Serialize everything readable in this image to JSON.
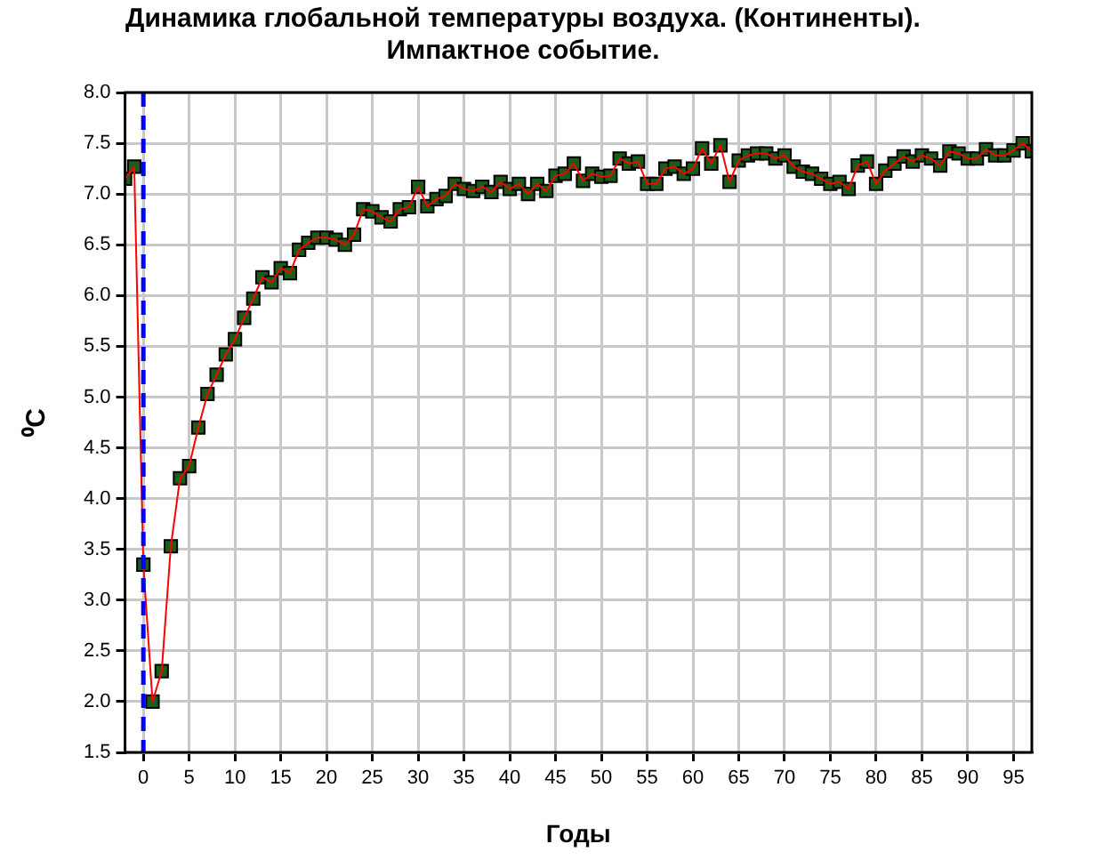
{
  "chart_data": {
    "type": "line",
    "title": "Динамика глобальной температуры воздуха. (Континенты).\nИмпактное событие.",
    "xlabel": "Годы",
    "ylabel": "⁰C",
    "x": [
      -2,
      -1,
      0,
      1,
      2,
      3,
      4,
      5,
      6,
      7,
      8,
      9,
      10,
      11,
      12,
      13,
      14,
      15,
      16,
      17,
      18,
      19,
      20,
      21,
      22,
      23,
      24,
      25,
      26,
      27,
      28,
      29,
      30,
      31,
      32,
      33,
      34,
      35,
      36,
      37,
      38,
      39,
      40,
      41,
      42,
      43,
      44,
      45,
      46,
      47,
      48,
      49,
      50,
      51,
      52,
      53,
      54,
      55,
      56,
      57,
      58,
      59,
      60,
      61,
      62,
      63,
      64,
      65,
      66,
      67,
      68,
      69,
      70,
      71,
      72,
      73,
      74,
      75,
      76,
      77,
      78,
      79,
      80,
      81,
      82,
      83,
      84,
      85,
      86,
      87,
      88,
      89,
      90,
      91,
      92,
      93,
      94,
      95,
      96,
      97
    ],
    "series": [
      {
        "color": "#ff0000",
        "marker": "none",
        "values": [
          7.15,
          7.27,
          3.35,
          2.0,
          2.3,
          3.53,
          4.2,
          4.32,
          4.7,
          5.03,
          5.22,
          5.42,
          5.57,
          5.78,
          5.97,
          6.18,
          6.13,
          6.27,
          6.22,
          6.45,
          6.52,
          6.57,
          6.57,
          6.55,
          6.5,
          6.6,
          6.85,
          6.83,
          6.77,
          6.73,
          6.85,
          6.87,
          7.07,
          6.88,
          6.95,
          6.98,
          7.1,
          7.05,
          7.03,
          7.07,
          7.02,
          7.12,
          7.05,
          7.1,
          7.0,
          7.1,
          7.03,
          7.18,
          7.2,
          7.3,
          7.13,
          7.2,
          7.17,
          7.18,
          7.35,
          7.3,
          7.32,
          7.1,
          7.1,
          7.25,
          7.27,
          7.2,
          7.25,
          7.45,
          7.3,
          7.48,
          7.12,
          7.33,
          7.38,
          7.4,
          7.4,
          7.35,
          7.38,
          7.27,
          7.22,
          7.2,
          7.15,
          7.1,
          7.12,
          7.05,
          7.28,
          7.32,
          7.1,
          7.23,
          7.3,
          7.37,
          7.32,
          7.38,
          7.35,
          7.28,
          7.42,
          7.4,
          7.35,
          7.35,
          7.44,
          7.38,
          7.38,
          7.43,
          7.5,
          7.42
        ]
      },
      {
        "type": "scatter",
        "color": "#1a5c1a",
        "marker": "square",
        "values": [
          7.15,
          7.27,
          3.35,
          2.0,
          2.3,
          3.53,
          4.2,
          4.32,
          4.7,
          5.03,
          5.22,
          5.42,
          5.57,
          5.78,
          5.97,
          6.18,
          6.13,
          6.27,
          6.22,
          6.45,
          6.52,
          6.57,
          6.57,
          6.55,
          6.5,
          6.6,
          6.85,
          6.83,
          6.77,
          6.73,
          6.85,
          6.87,
          7.07,
          6.88,
          6.95,
          6.98,
          7.1,
          7.05,
          7.03,
          7.07,
          7.02,
          7.12,
          7.05,
          7.1,
          7.0,
          7.1,
          7.03,
          7.18,
          7.2,
          7.3,
          7.13,
          7.2,
          7.17,
          7.18,
          7.35,
          7.3,
          7.32,
          7.1,
          7.1,
          7.25,
          7.27,
          7.2,
          7.25,
          7.45,
          7.3,
          7.48,
          7.12,
          7.33,
          7.38,
          7.4,
          7.4,
          7.35,
          7.38,
          7.27,
          7.22,
          7.2,
          7.15,
          7.1,
          7.12,
          7.05,
          7.28,
          7.32,
          7.1,
          7.23,
          7.3,
          7.37,
          7.32,
          7.38,
          7.35,
          7.28,
          7.42,
          7.4,
          7.35,
          7.35,
          7.44,
          7.38,
          7.38,
          7.43,
          7.5,
          7.42
        ]
      }
    ],
    "xlim": [
      -2,
      97
    ],
    "xticks": [
      0,
      5,
      10,
      15,
      20,
      25,
      30,
      35,
      40,
      45,
      50,
      55,
      60,
      65,
      70,
      75,
      80,
      85,
      90,
      95
    ],
    "ylim": [
      1.5,
      8.0
    ],
    "yticks": [
      {
        "value": 1.5,
        "label": "1.5"
      },
      {
        "value": 2,
        "label": "2.0"
      },
      {
        "value": 2.5,
        "label": "2.5"
      },
      {
        "value": 3,
        "label": "3.0"
      },
      {
        "value": 3.5,
        "label": "3.5"
      },
      {
        "value": 4,
        "label": "4.0"
      },
      {
        "value": 4.5,
        "label": "4.5"
      },
      {
        "value": 5,
        "label": "5.0"
      },
      {
        "value": 5.5,
        "label": "5.5"
      },
      {
        "value": 6,
        "label": "6.0"
      },
      {
        "value": 6.5,
        "label": "6.5"
      },
      {
        "value": 7,
        "label": "7.0"
      },
      {
        "value": 7.5,
        "label": "7.5"
      },
      {
        "value": 8,
        "label": "8.0"
      }
    ],
    "ref_lines": [
      {
        "axis": "x",
        "value": 0,
        "color": "#0000ff",
        "line_style": "dashed"
      }
    ],
    "grid": true,
    "legend": false
  }
}
